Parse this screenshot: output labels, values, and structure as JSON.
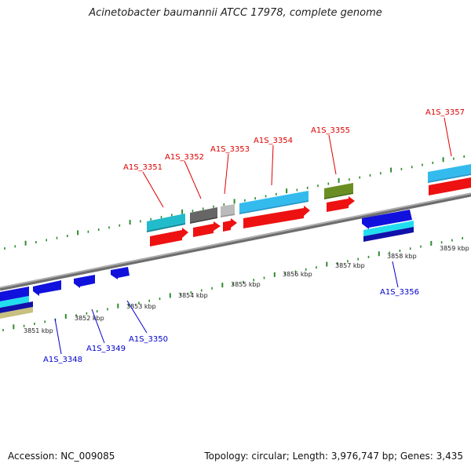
{
  "title": "Acinetobacter baumannii ATCC 17978, complete genome",
  "footer": {
    "accession": "Accession: NC_009085",
    "summary": "Topology: circular; Length: 3,976,747 bp; Genes: 3,435"
  },
  "ruler": {
    "ticks": [
      "3851 kbp",
      "3852 kbp",
      "3853 kbp",
      "3854 kbp",
      "3855 kbp",
      "3856 kbp",
      "3857 kbp",
      "3858 kbp",
      "3859 kbp"
    ]
  },
  "colors": {
    "backbone": "#8a8a8a",
    "tick": "#2e8b2e",
    "forward_label": "#dd0000",
    "reverse_label": "#0000cc",
    "cds": "#ee1111",
    "gene_blue": "#1111dd",
    "gene_cyan": "#22bbcc",
    "gene_sky": "#33bbee",
    "gene_gray": "#666666",
    "gene_lightgray": "#bbbbbb",
    "gene_olive": "#6b8e23",
    "gene_khaki": "#c8c080"
  },
  "forward_genes": [
    {
      "label": "A1S_3351",
      "color": "gene_cyan"
    },
    {
      "label": "A1S_3352",
      "color": "gene_gray"
    },
    {
      "label": "A1S_3353",
      "color": "gene_lightgray"
    },
    {
      "label": "A1S_3354",
      "color": "gene_sky"
    },
    {
      "label": "A1S_3355",
      "color": "gene_olive"
    },
    {
      "label": "A1S_3357",
      "color": "gene_sky"
    }
  ],
  "reverse_genes": [
    {
      "label": "A1S_3348",
      "color": "gene_blue"
    },
    {
      "label": "A1S_3349",
      "color": "gene_blue"
    },
    {
      "label": "A1S_3350",
      "color": "gene_blue"
    },
    {
      "label": "A1S_3356",
      "color": "gene_blue"
    }
  ]
}
